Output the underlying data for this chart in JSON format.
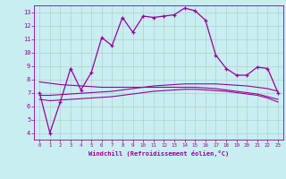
{
  "xlabel": "Windchill (Refroidissement éolien,°C)",
  "bg_color": "#c8eef0",
  "line_color": "#990099",
  "grid_color": "#b0c8c8",
  "xlim": [
    -0.5,
    23.5
  ],
  "ylim": [
    3.5,
    13.5
  ],
  "yticks": [
    4,
    5,
    6,
    7,
    8,
    9,
    10,
    11,
    12,
    13
  ],
  "xticks": [
    0,
    1,
    2,
    3,
    4,
    5,
    6,
    7,
    8,
    9,
    10,
    11,
    12,
    13,
    14,
    15,
    16,
    17,
    18,
    19,
    20,
    21,
    22,
    23
  ],
  "series": [
    {
      "x": [
        0,
        1,
        2,
        3,
        4,
        5,
        6,
        7,
        8,
        9,
        10,
        11,
        12,
        13,
        14,
        15,
        16,
        17,
        18,
        19,
        20,
        21,
        22,
        23
      ],
      "y": [
        7.0,
        4.0,
        6.3,
        8.8,
        7.2,
        8.5,
        11.1,
        10.5,
        12.6,
        11.5,
        12.7,
        12.6,
        12.7,
        12.8,
        13.3,
        13.1,
        12.4,
        9.8,
        8.8,
        8.3,
        8.3,
        8.9,
        8.8,
        7.0
      ],
      "marker": "+",
      "lw": 0.9
    },
    {
      "x": [
        0,
        1,
        2,
        3,
        4,
        5,
        6,
        7,
        8,
        9,
        10,
        11,
        12,
        13,
        14,
        15,
        16,
        17,
        18,
        19,
        20,
        21,
        22,
        23
      ],
      "y": [
        7.8,
        7.7,
        7.6,
        7.55,
        7.5,
        7.45,
        7.4,
        7.4,
        7.4,
        7.4,
        7.4,
        7.4,
        7.4,
        7.4,
        7.4,
        7.4,
        7.35,
        7.3,
        7.2,
        7.1,
        7.0,
        6.9,
        6.7,
        6.5
      ],
      "marker": null,
      "lw": 0.8
    },
    {
      "x": [
        0,
        1,
        2,
        3,
        4,
        5,
        6,
        7,
        8,
        9,
        10,
        11,
        12,
        13,
        14,
        15,
        16,
        17,
        18,
        19,
        20,
        21,
        22,
        23
      ],
      "y": [
        6.8,
        6.8,
        6.85,
        6.9,
        6.95,
        7.0,
        7.05,
        7.1,
        7.2,
        7.3,
        7.4,
        7.5,
        7.55,
        7.6,
        7.65,
        7.65,
        7.65,
        7.65,
        7.6,
        7.55,
        7.5,
        7.4,
        7.3,
        7.1
      ],
      "marker": null,
      "lw": 0.8
    },
    {
      "x": [
        0,
        1,
        2,
        3,
        4,
        5,
        6,
        7,
        8,
        9,
        10,
        11,
        12,
        13,
        14,
        15,
        16,
        17,
        18,
        19,
        20,
        21,
        22,
        23
      ],
      "y": [
        6.5,
        6.4,
        6.45,
        6.5,
        6.55,
        6.6,
        6.65,
        6.7,
        6.8,
        6.9,
        7.0,
        7.1,
        7.15,
        7.2,
        7.25,
        7.25,
        7.2,
        7.15,
        7.1,
        7.0,
        6.9,
        6.8,
        6.6,
        6.3
      ],
      "marker": null,
      "lw": 0.8
    }
  ]
}
